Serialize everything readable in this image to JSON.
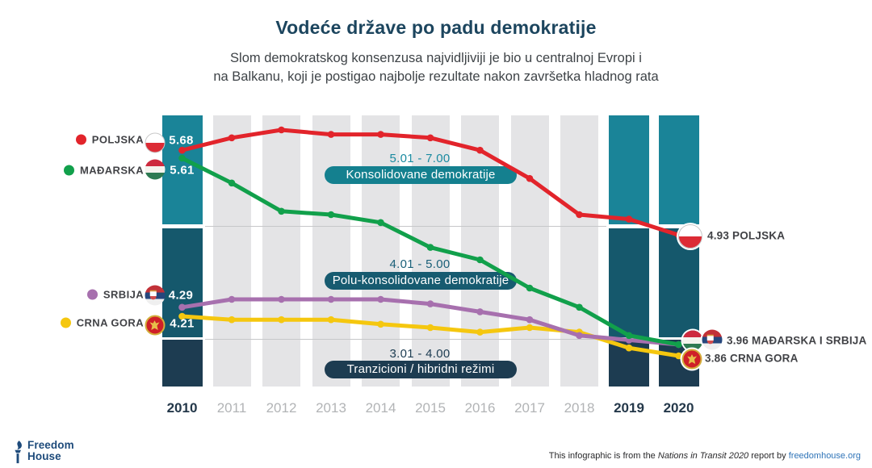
{
  "header": {
    "title": "Vodeće države po padu demokratije",
    "subtitle_line1": "Slom demokratskog konsenzusa najvidljiviji je bio u centralnoj Evropi i",
    "subtitle_line2": "na Balkanu, koji je postigao najbolje rezultate nakon završetka hladnog rata"
  },
  "chart_data": {
    "type": "line",
    "title": "Vodeće države po padu demokratije",
    "x": [
      2010,
      2011,
      2012,
      2013,
      2014,
      2015,
      2016,
      2017,
      2018,
      2019,
      2020
    ],
    "x_labels": [
      "2010",
      "2011",
      "2012",
      "2013",
      "2014",
      "2015",
      "2016",
      "2017",
      "2018",
      "2019",
      "2020"
    ],
    "highlighted_years": [
      "2010",
      "2019",
      "2020"
    ],
    "ylim": [
      3.55,
      6.0
    ],
    "grid": "highlight-columns",
    "series": [
      {
        "name": "POLJSKA",
        "flag": "poland",
        "color": "#e2242b",
        "values": [
          5.68,
          5.79,
          5.86,
          5.82,
          5.82,
          5.79,
          5.68,
          5.43,
          5.11,
          5.07,
          4.93
        ],
        "start_label": "5.68",
        "end_value": "4.93"
      },
      {
        "name": "MAĐARSKA",
        "flag": "hungary",
        "color": "#11a04b",
        "values": [
          5.61,
          5.39,
          5.14,
          5.11,
          5.04,
          4.82,
          4.71,
          4.46,
          4.29,
          4.04,
          3.96
        ],
        "start_label": "5.61",
        "end_value": "3.96"
      },
      {
        "name": "SRBIJA",
        "flag": "serbia",
        "color": "#a770ae",
        "values": [
          4.29,
          4.36,
          4.36,
          4.36,
          4.36,
          4.32,
          4.25,
          4.18,
          4.04,
          4.0,
          3.96
        ],
        "start_label": "4.29",
        "end_value": "3.96"
      },
      {
        "name": "CRNA GORA",
        "flag": "montenegro",
        "color": "#f5c70f",
        "values": [
          4.21,
          4.18,
          4.18,
          4.18,
          4.14,
          4.11,
          4.07,
          4.11,
          4.07,
          3.93,
          3.86
        ],
        "start_label": "4.21",
        "end_value": "3.86"
      }
    ],
    "bands": [
      {
        "range": "5.01 - 7.00",
        "label": "Konsolidovane demokratije",
        "band_color": "#1a8498",
        "pill_color": "#14808f",
        "range_text_color": "#1a8aa0"
      },
      {
        "range": "4.01 - 5.00",
        "label": "Polu-konsolidovane demokratije",
        "band_color": "#15586c",
        "pill_color": "#175b70",
        "range_text_color": "#1a5f78"
      },
      {
        "range": "3.01 - 4.00",
        "label": "Tranzicioni / hibridni režimi",
        "band_color": "#1d3c51",
        "pill_color": "#1d3c51",
        "range_text_color": "#1d3c51"
      }
    ],
    "end_labels": [
      {
        "value": "4.93",
        "name": "POLJSKA",
        "flags": [
          "poland"
        ]
      },
      {
        "value": "3.96",
        "name": "MAĐARSKA I SRBIJA",
        "flags": [
          "hungary",
          "serbia"
        ]
      },
      {
        "value": "3.86",
        "name": "CRNA GORA",
        "flags": [
          "montenegro"
        ]
      }
    ]
  },
  "colors": {
    "gray_column": "#e4e4e6",
    "boundary_line": "#c6c7c9",
    "axis_highlight": "#24384a",
    "axis_dim": "#b2b4b6",
    "title": "#1c455e"
  },
  "footer": {
    "logo_line1": "Freedom",
    "logo_line2": "House",
    "credit_prefix": "This infographic is from the ",
    "credit_italic": "Nations in Transit 2020",
    "credit_middle": " report by ",
    "credit_link": "freedomhouse.org"
  }
}
